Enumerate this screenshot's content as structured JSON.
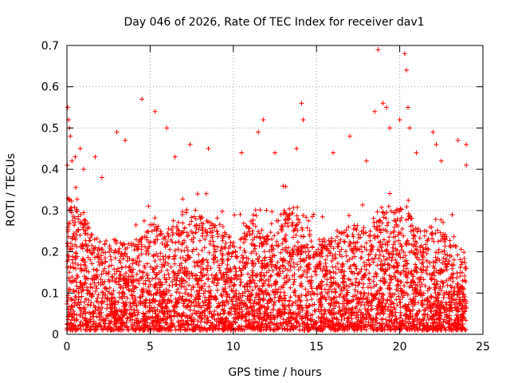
{
  "chart_data": {
    "type": "scatter",
    "title": "Day 046 of 2026, Rate Of TEC Index for receiver dav1",
    "xlabel": "GPS time / hours",
    "ylabel": "ROTI / TECUs",
    "xlim": [
      0,
      25
    ],
    "ylim": [
      0,
      0.7
    ],
    "x_ticks": [
      "0",
      "5",
      "10",
      "15",
      "20",
      "25"
    ],
    "y_ticks": [
      "0",
      "0.1",
      "0.2",
      "0.3",
      "0.4",
      "0.5",
      "0.6",
      "0.7"
    ],
    "grid": true,
    "marker": "plus",
    "series_color": "#ff0000",
    "x_range_of_data": [
      0,
      24
    ],
    "baseline_envelope": [
      [
        0.0,
        0.34
      ],
      [
        0.5,
        0.3
      ],
      [
        1.0,
        0.27
      ],
      [
        1.5,
        0.25
      ],
      [
        2.0,
        0.23
      ],
      [
        2.5,
        0.22
      ],
      [
        3.0,
        0.22
      ],
      [
        3.5,
        0.21
      ],
      [
        4.0,
        0.22
      ],
      [
        4.5,
        0.24
      ],
      [
        5.0,
        0.26
      ],
      [
        5.5,
        0.26
      ],
      [
        6.0,
        0.24
      ],
      [
        6.5,
        0.26
      ],
      [
        7.0,
        0.3
      ],
      [
        7.5,
        0.3
      ],
      [
        8.0,
        0.28
      ],
      [
        8.5,
        0.27
      ],
      [
        9.0,
        0.27
      ],
      [
        9.5,
        0.24
      ],
      [
        10.0,
        0.22
      ],
      [
        10.5,
        0.24
      ],
      [
        11.0,
        0.27
      ],
      [
        11.5,
        0.25
      ],
      [
        12.0,
        0.24
      ],
      [
        12.5,
        0.26
      ],
      [
        13.0,
        0.29
      ],
      [
        13.5,
        0.3
      ],
      [
        14.0,
        0.3
      ],
      [
        14.5,
        0.27
      ],
      [
        15.0,
        0.23
      ],
      [
        15.5,
        0.22
      ],
      [
        16.0,
        0.23
      ],
      [
        16.5,
        0.24
      ],
      [
        17.0,
        0.25
      ],
      [
        17.5,
        0.26
      ],
      [
        18.0,
        0.25
      ],
      [
        18.5,
        0.28
      ],
      [
        19.0,
        0.3
      ],
      [
        19.5,
        0.3
      ],
      [
        20.0,
        0.3
      ],
      [
        20.5,
        0.3
      ],
      [
        21.0,
        0.26
      ],
      [
        21.5,
        0.25
      ],
      [
        22.0,
        0.26
      ],
      [
        22.5,
        0.25
      ],
      [
        23.0,
        0.22
      ],
      [
        23.5,
        0.2
      ],
      [
        24.0,
        0.18
      ]
    ],
    "outliers": [
      [
        0.05,
        0.55
      ],
      [
        0.1,
        0.52
      ],
      [
        0.15,
        0.5
      ],
      [
        0.2,
        0.48
      ],
      [
        0.3,
        0.42
      ],
      [
        0.5,
        0.43
      ],
      [
        0.8,
        0.45
      ],
      [
        1.0,
        0.4
      ],
      [
        1.7,
        0.43
      ],
      [
        2.1,
        0.38
      ],
      [
        3.0,
        0.49
      ],
      [
        3.5,
        0.47
      ],
      [
        4.5,
        0.57
      ],
      [
        5.3,
        0.54
      ],
      [
        6.0,
        0.5
      ],
      [
        6.5,
        0.43
      ],
      [
        7.4,
        0.46
      ],
      [
        8.5,
        0.45
      ],
      [
        10.5,
        0.44
      ],
      [
        11.5,
        0.49
      ],
      [
        11.8,
        0.52
      ],
      [
        12.5,
        0.44
      ],
      [
        13.8,
        0.45
      ],
      [
        14.1,
        0.56
      ],
      [
        14.2,
        0.52
      ],
      [
        16.0,
        0.44
      ],
      [
        17.0,
        0.48
      ],
      [
        18.0,
        0.42
      ],
      [
        18.5,
        0.54
      ],
      [
        18.7,
        0.69
      ],
      [
        19.0,
        0.56
      ],
      [
        19.2,
        0.55
      ],
      [
        19.4,
        0.5
      ],
      [
        20.0,
        0.52
      ],
      [
        20.3,
        0.68
      ],
      [
        20.4,
        0.64
      ],
      [
        20.5,
        0.55
      ],
      [
        20.6,
        0.5
      ],
      [
        21.0,
        0.44
      ],
      [
        22.0,
        0.49
      ],
      [
        22.2,
        0.46
      ],
      [
        22.5,
        0.42
      ],
      [
        23.5,
        0.47
      ],
      [
        24.0,
        0.46
      ],
      [
        24.0,
        0.41
      ]
    ]
  }
}
